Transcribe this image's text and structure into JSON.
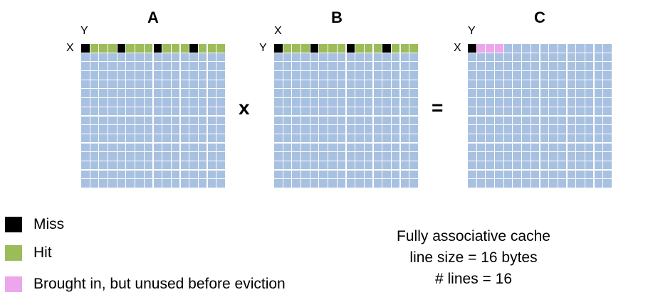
{
  "colors": {
    "default": "#a8c1e0",
    "miss": "#000000",
    "hit": "#9bbc59",
    "unused": "#eba6ec"
  },
  "matrices": [
    {
      "name": "A",
      "top_axis": "Y",
      "left_axis": "X",
      "first_row": [
        "miss",
        "hit",
        "hit",
        "hit",
        "miss",
        "hit",
        "hit",
        "hit",
        "miss",
        "hit",
        "hit",
        "hit",
        "miss",
        "hit",
        "hit",
        "hit"
      ]
    },
    {
      "name": "B",
      "top_axis": "X",
      "left_axis": "Y",
      "first_row": [
        "miss",
        "hit",
        "hit",
        "hit",
        "miss",
        "hit",
        "hit",
        "hit",
        "miss",
        "hit",
        "hit",
        "hit",
        "miss",
        "hit",
        "hit",
        "hit"
      ]
    },
    {
      "name": "C",
      "top_axis": "Y",
      "left_axis": "X",
      "first_row": [
        "miss",
        "unused",
        "unused",
        "unused"
      ]
    }
  ],
  "grid_size": 16,
  "operators": {
    "multiply": "x",
    "equals": "="
  },
  "legend": [
    {
      "key": "miss",
      "label": "Miss"
    },
    {
      "key": "hit",
      "label": "Hit"
    },
    {
      "key": "unused",
      "label": "Brought in, but unused before eviction"
    }
  ],
  "cache_note": {
    "line1": "Fully associative cache",
    "line2": "line size = 16 bytes",
    "line3": "# lines = 16"
  }
}
